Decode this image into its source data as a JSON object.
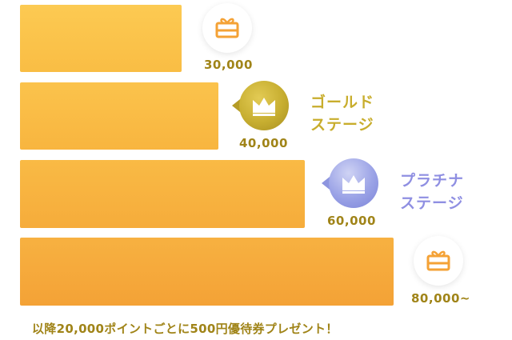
{
  "tiers": [
    {
      "points": "30,000",
      "icon": "gift-icon"
    },
    {
      "points": "40,000",
      "icon": "crown-icon",
      "stage_line1": "ゴールド",
      "stage_line2": "ステージ",
      "color": "#c8ad2c"
    },
    {
      "points": "60,000",
      "icon": "crown-icon",
      "stage_line1": "プラチナ",
      "stage_line2": "ステージ",
      "color": "#8f8fe2"
    },
    {
      "points": "80,000~",
      "icon": "gift-icon"
    }
  ],
  "footer_note": "以降20,000ポイントごとに500円優待券プレゼント！",
  "colors": {
    "bar": "#f9b843",
    "text_gold": "#a08418",
    "gift_orange": "#f4a236"
  }
}
